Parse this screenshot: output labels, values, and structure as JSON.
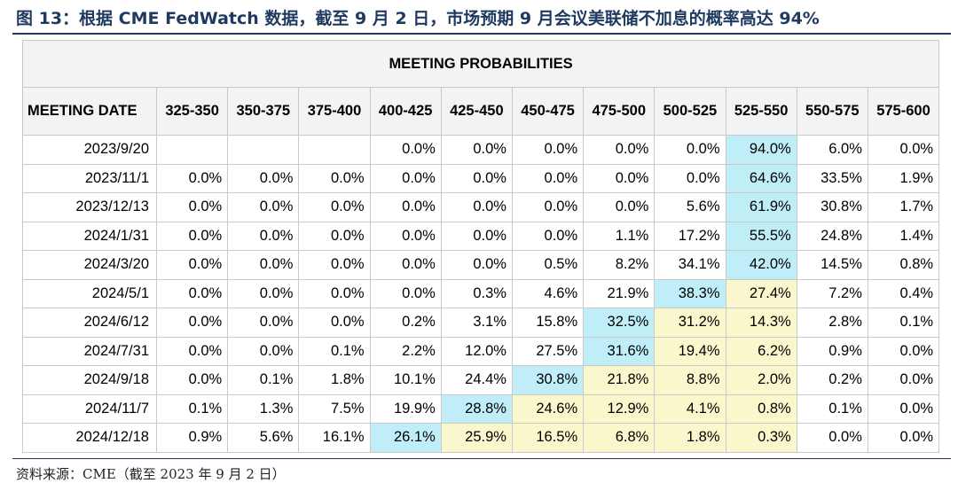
{
  "figure_title": "图 13：根据 CME FedWatch 数据，截至 9 月 2 日，市场预期 9 月会议美联储不加息的概率高达 94%",
  "table": {
    "banner": "MEETING PROBABILITIES",
    "columns": [
      "MEETING DATE",
      "325-350",
      "350-375",
      "375-400",
      "400-425",
      "425-450",
      "450-475",
      "475-500",
      "500-525",
      "525-550",
      "550-575",
      "575-600"
    ],
    "rows": [
      {
        "date": "2023/9/20",
        "cells": [
          "",
          "",
          "",
          "0.0%",
          "0.0%",
          "0.0%",
          "0.0%",
          "0.0%",
          "94.0%",
          "6.0%",
          "0.0%"
        ],
        "hl": [
          "",
          "",
          "",
          "",
          "",
          "",
          "",
          "",
          "blue",
          "",
          ""
        ]
      },
      {
        "date": "2023/11/1",
        "cells": [
          "0.0%",
          "0.0%",
          "0.0%",
          "0.0%",
          "0.0%",
          "0.0%",
          "0.0%",
          "0.0%",
          "64.6%",
          "33.5%",
          "1.9%"
        ],
        "hl": [
          "",
          "",
          "",
          "",
          "",
          "",
          "",
          "",
          "blue",
          "",
          ""
        ]
      },
      {
        "date": "2023/12/13",
        "cells": [
          "0.0%",
          "0.0%",
          "0.0%",
          "0.0%",
          "0.0%",
          "0.0%",
          "0.0%",
          "5.6%",
          "61.9%",
          "30.8%",
          "1.7%"
        ],
        "hl": [
          "",
          "",
          "",
          "",
          "",
          "",
          "",
          "",
          "blue",
          "",
          ""
        ]
      },
      {
        "date": "2024/1/31",
        "cells": [
          "0.0%",
          "0.0%",
          "0.0%",
          "0.0%",
          "0.0%",
          "0.0%",
          "1.1%",
          "17.2%",
          "55.5%",
          "24.8%",
          "1.4%"
        ],
        "hl": [
          "",
          "",
          "",
          "",
          "",
          "",
          "",
          "",
          "blue",
          "",
          ""
        ]
      },
      {
        "date": "2024/3/20",
        "cells": [
          "0.0%",
          "0.0%",
          "0.0%",
          "0.0%",
          "0.0%",
          "0.5%",
          "8.2%",
          "34.1%",
          "42.0%",
          "14.5%",
          "0.8%"
        ],
        "hl": [
          "",
          "",
          "",
          "",
          "",
          "",
          "",
          "",
          "blue",
          "",
          ""
        ]
      },
      {
        "date": "2024/5/1",
        "cells": [
          "0.0%",
          "0.0%",
          "0.0%",
          "0.0%",
          "0.3%",
          "4.6%",
          "21.9%",
          "38.3%",
          "27.4%",
          "7.2%",
          "0.4%"
        ],
        "hl": [
          "",
          "",
          "",
          "",
          "",
          "",
          "",
          "blue",
          "yellow",
          "",
          ""
        ]
      },
      {
        "date": "2024/6/12",
        "cells": [
          "0.0%",
          "0.0%",
          "0.0%",
          "0.2%",
          "3.1%",
          "15.8%",
          "32.5%",
          "31.2%",
          "14.3%",
          "2.8%",
          "0.1%"
        ],
        "hl": [
          "",
          "",
          "",
          "",
          "",
          "",
          "blue",
          "yellow",
          "yellow",
          "",
          ""
        ]
      },
      {
        "date": "2024/7/31",
        "cells": [
          "0.0%",
          "0.0%",
          "0.1%",
          "2.2%",
          "12.0%",
          "27.5%",
          "31.6%",
          "19.4%",
          "6.2%",
          "0.9%",
          "0.0%"
        ],
        "hl": [
          "",
          "",
          "",
          "",
          "",
          "",
          "blue",
          "yellow",
          "yellow",
          "",
          ""
        ]
      },
      {
        "date": "2024/9/18",
        "cells": [
          "0.0%",
          "0.1%",
          "1.8%",
          "10.1%",
          "24.4%",
          "30.8%",
          "21.8%",
          "8.8%",
          "2.0%",
          "0.2%",
          "0.0%"
        ],
        "hl": [
          "",
          "",
          "",
          "",
          "",
          "blue",
          "yellow",
          "yellow",
          "yellow",
          "",
          ""
        ]
      },
      {
        "date": "2024/11/7",
        "cells": [
          "0.1%",
          "1.3%",
          "7.5%",
          "19.9%",
          "28.8%",
          "24.6%",
          "12.9%",
          "4.1%",
          "0.8%",
          "0.1%",
          "0.0%"
        ],
        "hl": [
          "",
          "",
          "",
          "",
          "blue",
          "yellow",
          "yellow",
          "yellow",
          "yellow",
          "",
          ""
        ]
      },
      {
        "date": "2024/12/18",
        "cells": [
          "0.9%",
          "5.6%",
          "16.1%",
          "26.1%",
          "25.9%",
          "16.5%",
          "6.8%",
          "1.8%",
          "0.3%",
          "0.0%",
          "0.0%"
        ],
        "hl": [
          "",
          "",
          "",
          "blue",
          "yellow",
          "yellow",
          "yellow",
          "yellow",
          "yellow",
          "",
          ""
        ]
      }
    ]
  },
  "source": "资料来源：CME（截至 2023 年 9 月 2 日）",
  "colors": {
    "title": "#1f3a5f",
    "highlight_blue": "#bfeef8",
    "highlight_yellow": "#fbf7cc",
    "header_bg": "#f3f3f3"
  }
}
